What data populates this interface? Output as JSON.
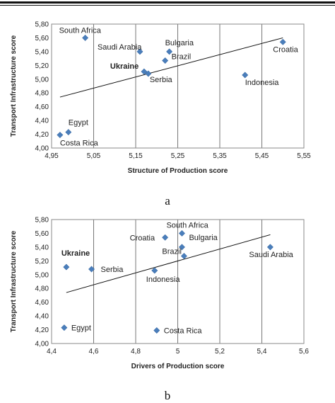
{
  "chart_data": [
    {
      "type": "scatter",
      "title": "",
      "caption": "a",
      "xlabel": "Structure of Production score",
      "ylabel": "Transport Infrastructure score",
      "xlim": [
        4.95,
        5.55
      ],
      "ylim": [
        4.0,
        5.8
      ],
      "xticks": [
        "4,95",
        "5,05",
        "5,15",
        "5,25",
        "5,35",
        "5,45",
        "5,55"
      ],
      "yticks": [
        "4,00",
        "4,20",
        "4,40",
        "4,60",
        "4,80",
        "5,00",
        "5,20",
        "5,40",
        "5,60",
        "5,80"
      ],
      "xtick_values": [
        4.95,
        5.05,
        5.15,
        5.25,
        5.35,
        5.45,
        5.55
      ],
      "ytick_values": [
        4.0,
        4.2,
        4.4,
        4.6,
        4.8,
        5.0,
        5.2,
        5.4,
        5.6,
        5.8
      ],
      "grid": "vertical",
      "marker_color": "#4a7ebb",
      "points": [
        {
          "label": "South Africa",
          "x": 5.03,
          "y": 5.6,
          "bold": false
        },
        {
          "label": "Saudi Arabia",
          "x": 5.16,
          "y": 5.4,
          "bold": false
        },
        {
          "label": "Bulgaria",
          "x": 5.23,
          "y": 5.4,
          "bold": false
        },
        {
          "label": "Brazil",
          "x": 5.22,
          "y": 5.27,
          "bold": false
        },
        {
          "label": "Ukraine",
          "x": 5.17,
          "y": 5.11,
          "bold": true
        },
        {
          "label": "Serbia",
          "x": 5.18,
          "y": 5.08,
          "bold": false
        },
        {
          "label": "Croatia",
          "x": 5.5,
          "y": 5.54,
          "bold": false
        },
        {
          "label": "Indonesia",
          "x": 5.41,
          "y": 5.06,
          "bold": false
        },
        {
          "label": "Egypt",
          "x": 4.99,
          "y": 4.23,
          "bold": false
        },
        {
          "label": "Costa Rica",
          "x": 4.97,
          "y": 4.19,
          "bold": false
        }
      ],
      "trendline": {
        "x1": 4.97,
        "y1": 4.74,
        "x2": 5.5,
        "y2": 5.6
      }
    },
    {
      "type": "scatter",
      "title": "",
      "caption": "b",
      "xlabel": "Drivers of Production score",
      "ylabel": "Transport Infrastructure score",
      "xlim": [
        4.4,
        5.6
      ],
      "ylim": [
        4.0,
        5.8
      ],
      "xticks": [
        "4,4",
        "4,6",
        "4,8",
        "5",
        "5,2",
        "5,4",
        "5,6"
      ],
      "yticks": [
        "4,00",
        "4,20",
        "4,40",
        "4,60",
        "4,80",
        "5,00",
        "5,20",
        "5,40",
        "5,60",
        "5,80"
      ],
      "xtick_values": [
        4.4,
        4.6,
        4.8,
        5.0,
        5.2,
        5.4,
        5.6
      ],
      "ytick_values": [
        4.0,
        4.2,
        4.4,
        4.6,
        4.8,
        5.0,
        5.2,
        5.4,
        5.6,
        5.8
      ],
      "grid": "vertical",
      "marker_color": "#4a7ebb",
      "points": [
        {
          "label": "South Africa",
          "x": 5.02,
          "y": 5.6,
          "bold": false
        },
        {
          "label": "Croatia",
          "x": 4.94,
          "y": 5.54,
          "bold": false
        },
        {
          "label": "Bulgaria",
          "x": 5.02,
          "y": 5.4,
          "bold": false
        },
        {
          "label": "Brazil",
          "x": 5.03,
          "y": 5.27,
          "bold": false
        },
        {
          "label": "Saudi Arabia",
          "x": 5.44,
          "y": 5.4,
          "bold": false
        },
        {
          "label": "Ukraine",
          "x": 4.47,
          "y": 5.11,
          "bold": true
        },
        {
          "label": "Serbia",
          "x": 4.59,
          "y": 5.08,
          "bold": false
        },
        {
          "label": "Indonesia",
          "x": 4.89,
          "y": 5.06,
          "bold": false
        },
        {
          "label": "Egypt",
          "x": 4.46,
          "y": 4.23,
          "bold": false
        },
        {
          "label": "Costa Rica",
          "x": 4.9,
          "y": 4.19,
          "bold": false
        }
      ],
      "trendline": {
        "x1": 4.47,
        "y1": 4.74,
        "x2": 5.44,
        "y2": 5.58
      }
    }
  ]
}
